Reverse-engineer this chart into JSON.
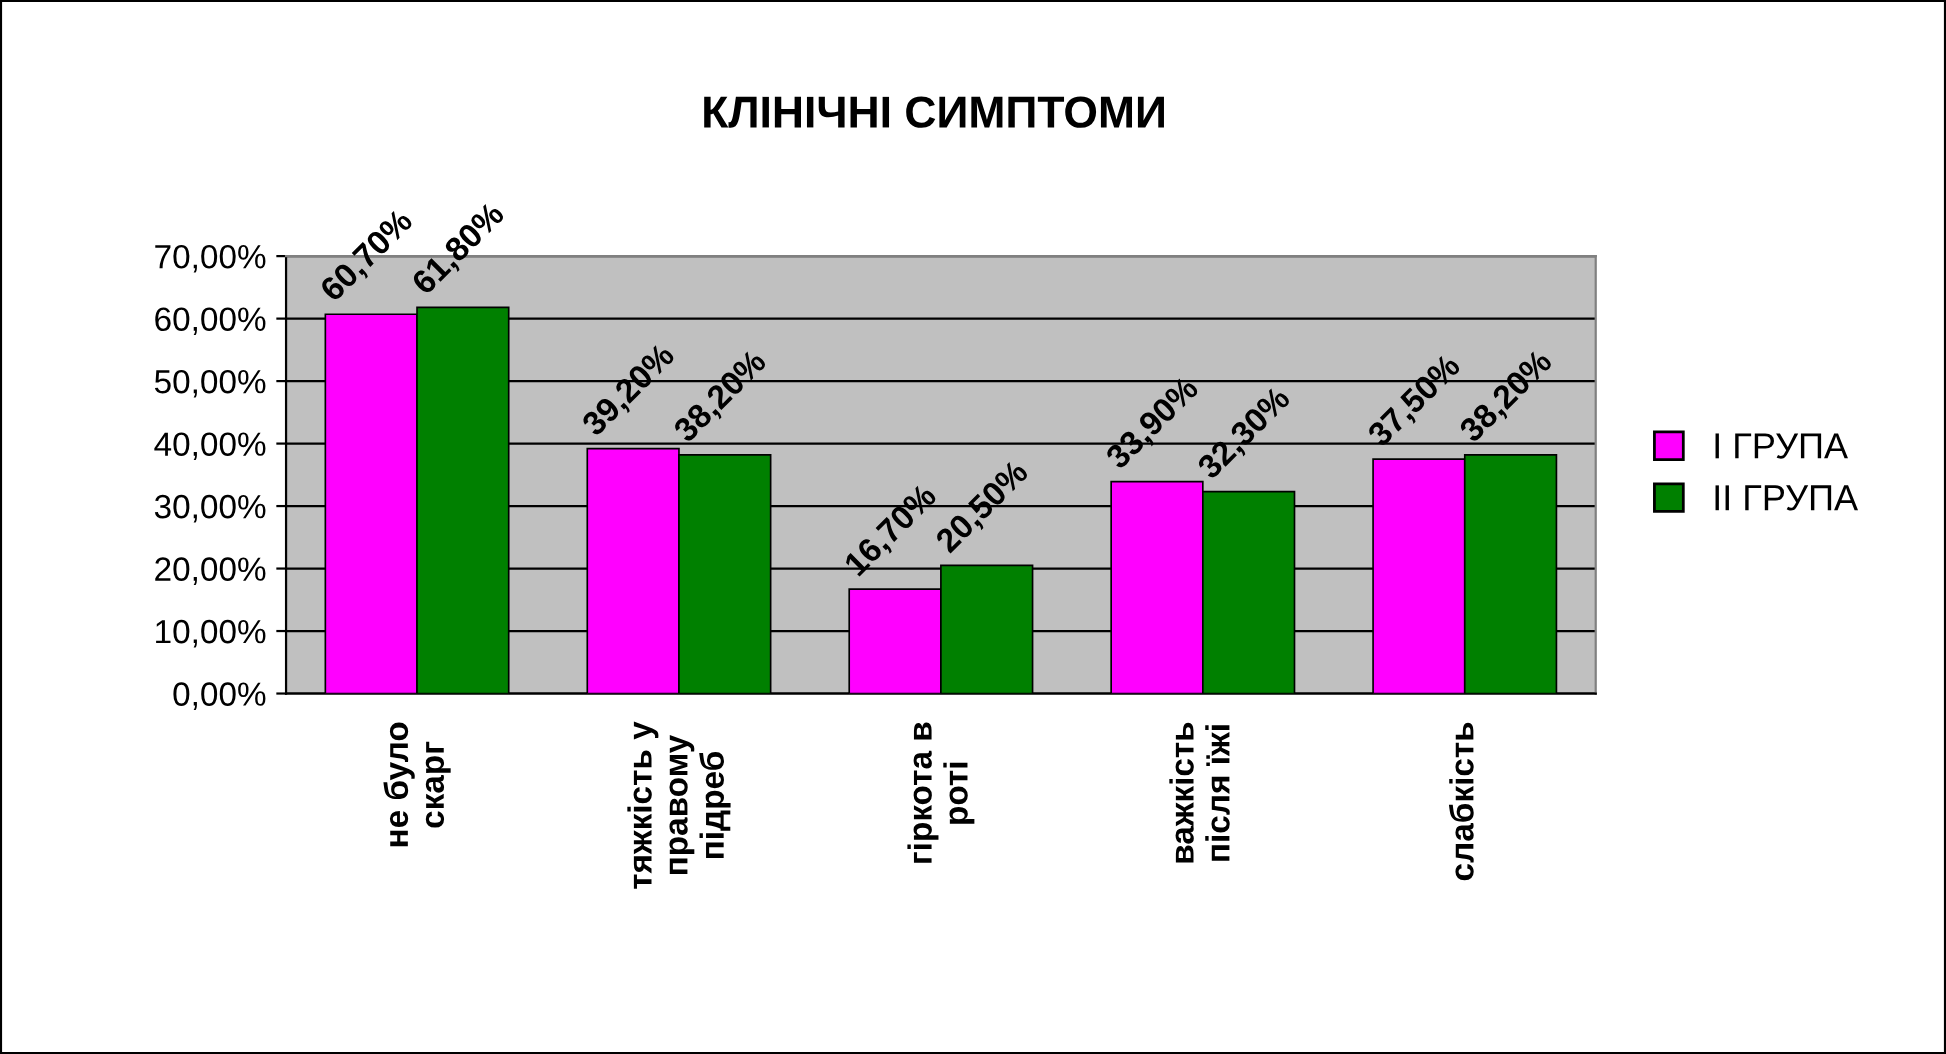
{
  "chart_data": {
    "type": "bar",
    "title": "КЛІНІЧНІ СИМПТОМИ",
    "categories": [
      "не було\nскарг",
      "тяжкість у\nправому\nпідреб",
      "гіркота в\nроті",
      "важкість\nпісля їжі",
      "слабкість"
    ],
    "series": [
      {
        "name": "I ГРУПА",
        "color": "#ff00ff",
        "values": [
          60.7,
          39.2,
          16.7,
          33.9,
          37.5
        ],
        "value_labels": [
          "60,70%",
          "39,20%",
          "16,70%",
          "33,90%",
          "37,50%"
        ]
      },
      {
        "name": "II ГРУПА",
        "color": "#008000",
        "values": [
          61.8,
          38.2,
          20.5,
          32.3,
          38.2
        ],
        "value_labels": [
          "61,80%",
          "38,20%",
          "20,50%",
          "32,30%",
          "38,20%"
        ]
      }
    ],
    "ylim": [
      0,
      70
    ],
    "yticks": [
      {
        "value": 0,
        "label": "0,00%"
      },
      {
        "value": 10,
        "label": "10,00%"
      },
      {
        "value": 20,
        "label": "20,00%"
      },
      {
        "value": 30,
        "label": "30,00%"
      },
      {
        "value": 40,
        "label": "40,00%"
      },
      {
        "value": 50,
        "label": "50,00%"
      },
      {
        "value": 60,
        "label": "60,00%"
      },
      {
        "value": 70,
        "label": "70,00%"
      }
    ],
    "grid": "y",
    "legend": "right"
  }
}
